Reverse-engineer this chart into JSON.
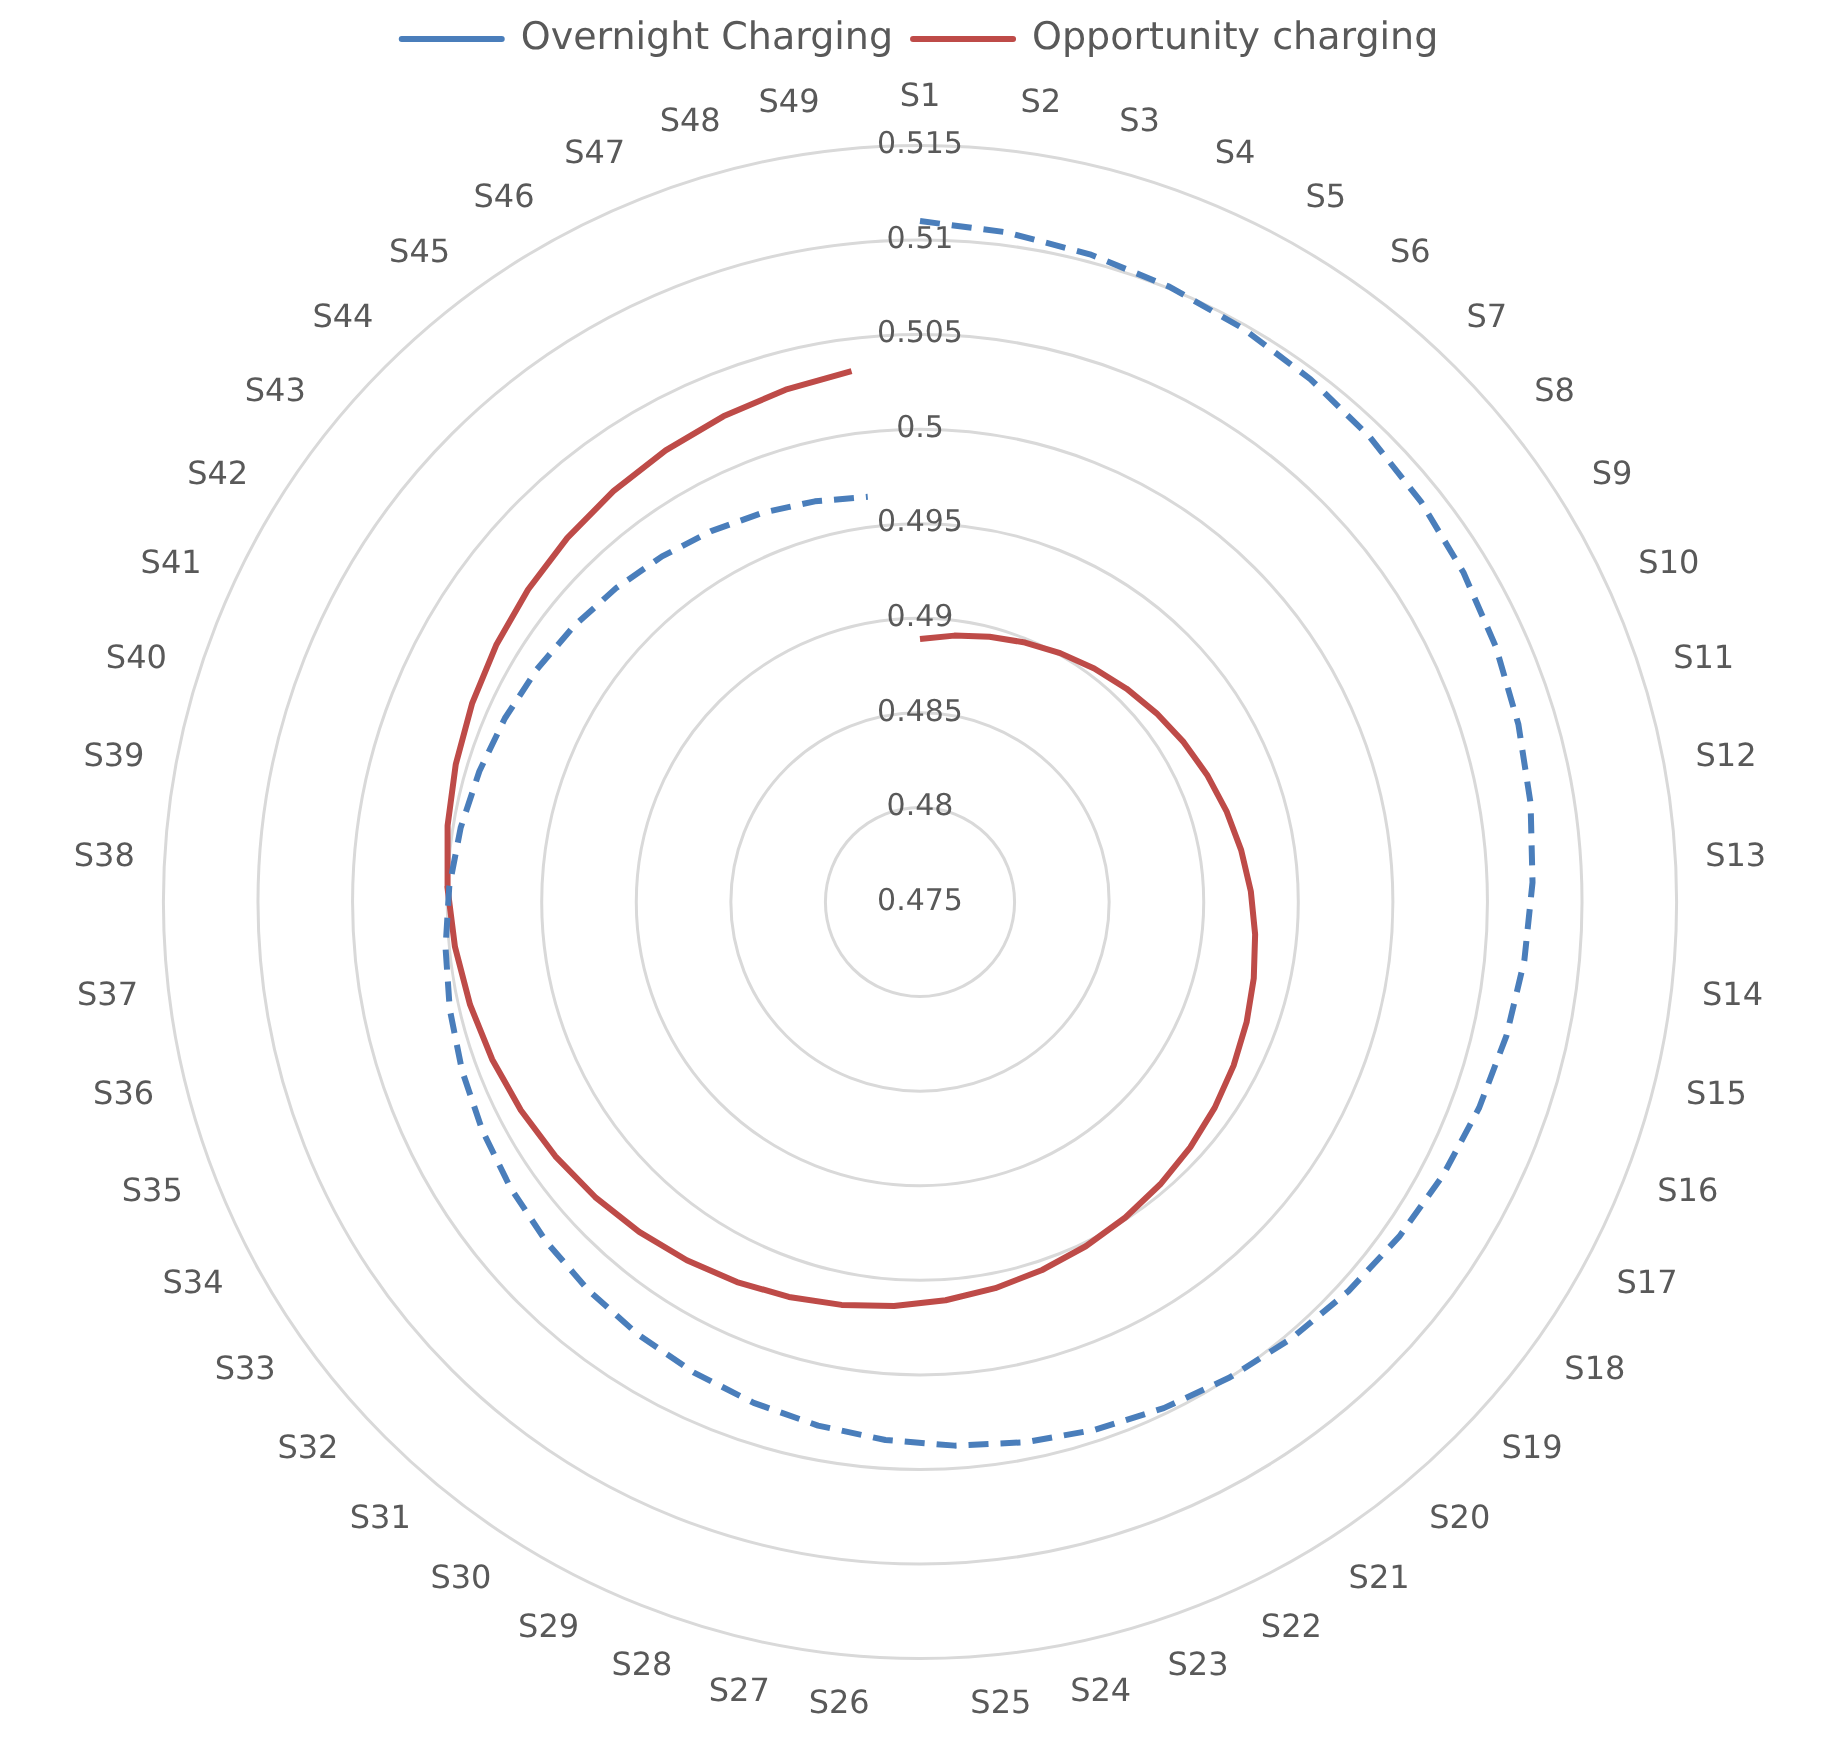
{
  "chart_data": {
    "type": "radar",
    "categories": [
      "S1",
      "S2",
      "S3",
      "S4",
      "S5",
      "S6",
      "S7",
      "S8",
      "S9",
      "S10",
      "S11",
      "S12",
      "S13",
      "S14",
      "S15",
      "S16",
      "S17",
      "S18",
      "S19",
      "S20",
      "S21",
      "S22",
      "S23",
      "S24",
      "S25",
      "S26",
      "S27",
      "S28",
      "S29",
      "S30",
      "S31",
      "S32",
      "S33",
      "S34",
      "S35",
      "S36",
      "S37",
      "S38",
      "S39",
      "S40",
      "S41",
      "S42",
      "S43",
      "S44",
      "S45",
      "S46",
      "S47",
      "S48",
      "S49"
    ],
    "ylim": [
      0.475,
      0.515
    ],
    "yticks": [
      0.475,
      0.48,
      0.485,
      0.49,
      0.495,
      0.5,
      0.505,
      0.51,
      0.515
    ],
    "grid": true,
    "legend": "top",
    "marker": "none",
    "series": [
      {
        "name": "Overnight Charging",
        "color": "#4a7ebb",
        "line_style": "dashed",
        "values": [
          0.511,
          0.5107,
          0.5104,
          0.5101,
          0.5098,
          0.5095,
          0.5092,
          0.5089,
          0.5086,
          0.5083,
          0.508,
          0.5077,
          0.5074,
          0.5071,
          0.5068,
          0.5065,
          0.5062,
          0.5059,
          0.5056,
          0.5053,
          0.505,
          0.5047,
          0.5044,
          0.5041,
          0.5038,
          0.5035,
          0.5032,
          0.5029,
          0.5026,
          0.5023,
          0.502,
          0.5017,
          0.5014,
          0.5011,
          0.5008,
          0.5005,
          0.5002,
          0.4999,
          0.4996,
          0.4993,
          0.499,
          0.4987,
          0.4984,
          0.4981,
          0.4978,
          0.4975,
          0.4972,
          0.4969,
          0.4966
        ]
      },
      {
        "name": "Opportunity charging",
        "color": "#be4b48",
        "line_style": "solid",
        "values": [
          0.4889,
          0.4892,
          0.4895,
          0.4898,
          0.4901,
          0.4904,
          0.4907,
          0.491,
          0.4913,
          0.4916,
          0.4919,
          0.4922,
          0.4925,
          0.4928,
          0.4931,
          0.4934,
          0.4937,
          0.494,
          0.4943,
          0.4946,
          0.4949,
          0.4952,
          0.4955,
          0.4958,
          0.4961,
          0.4964,
          0.4967,
          0.497,
          0.4973,
          0.4976,
          0.4979,
          0.4982,
          0.4985,
          0.4988,
          0.4991,
          0.4994,
          0.4997,
          0.5,
          0.5003,
          0.5006,
          0.5009,
          0.5012,
          0.5015,
          0.5018,
          0.5021,
          0.5024,
          0.5027,
          0.503,
          0.5033
        ]
      }
    ]
  }
}
